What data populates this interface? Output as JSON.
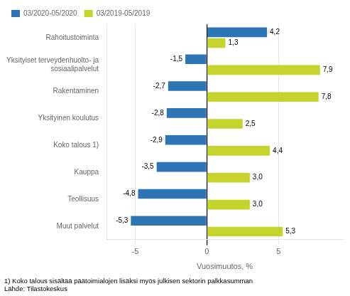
{
  "chart_data": {
    "type": "bar",
    "orientation": "horizontal",
    "categories": [
      "Muut palvelut",
      "Teollisuus",
      "Kauppa",
      "Koko talous 1)",
      "Yksityinen koulutus",
      "Rakentaminen",
      "Yksityiset terveydenhuolto- ja\nsosiaalipalvelut",
      "Rahoitustoiminta"
    ],
    "series": [
      {
        "name": "03/2020-05/2020",
        "color": "#2E75B6",
        "values": [
          -5.3,
          -4.8,
          -3.5,
          -2.9,
          -2.8,
          -2.7,
          -1.5,
          4.2
        ],
        "value_labels": [
          "-5,3",
          "-4,8",
          "-3,5",
          "-2,9",
          "-2,8",
          "-2,7",
          "-1,5",
          "4,2"
        ]
      },
      {
        "name": "03/2019-05/2019",
        "color": "#C5D42D",
        "values": [
          5.3,
          3.0,
          3.0,
          4.4,
          2.5,
          7.8,
          7.9,
          1.3
        ],
        "value_labels": [
          "5,3",
          "3,0",
          "3,0",
          "4,4",
          "2,5",
          "7,8",
          "7,9",
          "1,3"
        ]
      }
    ],
    "xlabel": "Vuosimuutos, %",
    "xlim": [
      -7,
      9.5
    ],
    "xticks": [
      -5,
      0,
      5
    ],
    "grid": true,
    "legend": "upper left",
    "data_labels": true,
    "annotations": [
      "1) Koko talous sisältää päätoimialojen lisäksi myös julkisen sektorin palkkasumman",
      "Lähde: Tilastokeskus"
    ]
  }
}
